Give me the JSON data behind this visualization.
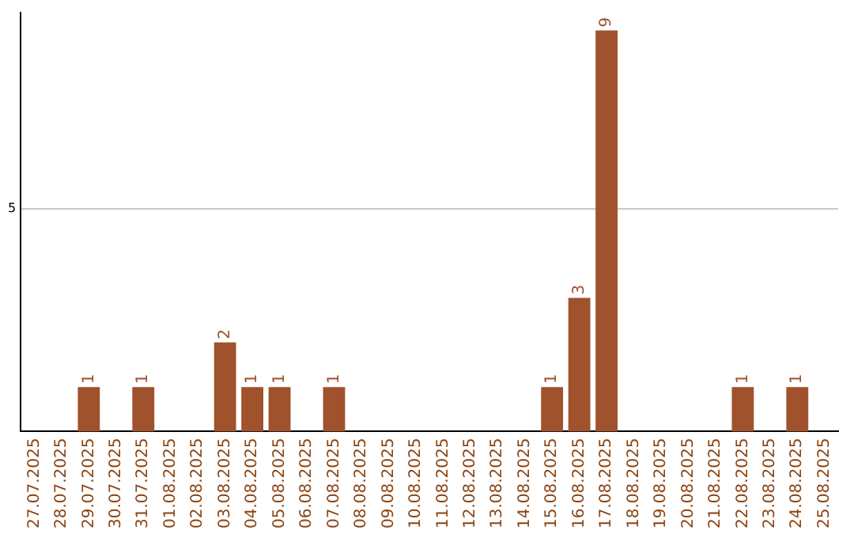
{
  "chart_data": {
    "type": "bar",
    "categories": [
      "27.07.2025",
      "28.07.2025",
      "29.07.2025",
      "30.07.2025",
      "31.07.2025",
      "01.08.2025",
      "02.08.2025",
      "03.08.2025",
      "04.08.2025",
      "05.08.2025",
      "06.08.2025",
      "07.08.2025",
      "08.08.2025",
      "09.08.2025",
      "10.08.2025",
      "11.08.2025",
      "12.08.2025",
      "13.08.2025",
      "14.08.2025",
      "15.08.2025",
      "16.08.2025",
      "17.08.2025",
      "18.08.2025",
      "19.08.2025",
      "20.08.2025",
      "21.08.2025",
      "22.08.2025",
      "23.08.2025",
      "24.08.2025",
      "25.08.2025"
    ],
    "values": [
      0,
      0,
      1,
      0,
      1,
      0,
      0,
      2,
      1,
      1,
      0,
      1,
      0,
      0,
      0,
      0,
      0,
      0,
      0,
      1,
      3,
      9,
      0,
      0,
      0,
      0,
      1,
      0,
      1,
      0
    ],
    "value_labels": [
      null,
      null,
      "1",
      null,
      "1",
      null,
      null,
      "2",
      "1",
      "1",
      null,
      "1",
      null,
      null,
      null,
      null,
      null,
      null,
      null,
      "1",
      "3",
      "9",
      null,
      null,
      null,
      null,
      "1",
      null,
      "1",
      null
    ],
    "color": "#a0522d",
    "ylim": [
      0,
      9.4
    ],
    "yticks": [
      5
    ],
    "grid": "y",
    "legend": false
  }
}
